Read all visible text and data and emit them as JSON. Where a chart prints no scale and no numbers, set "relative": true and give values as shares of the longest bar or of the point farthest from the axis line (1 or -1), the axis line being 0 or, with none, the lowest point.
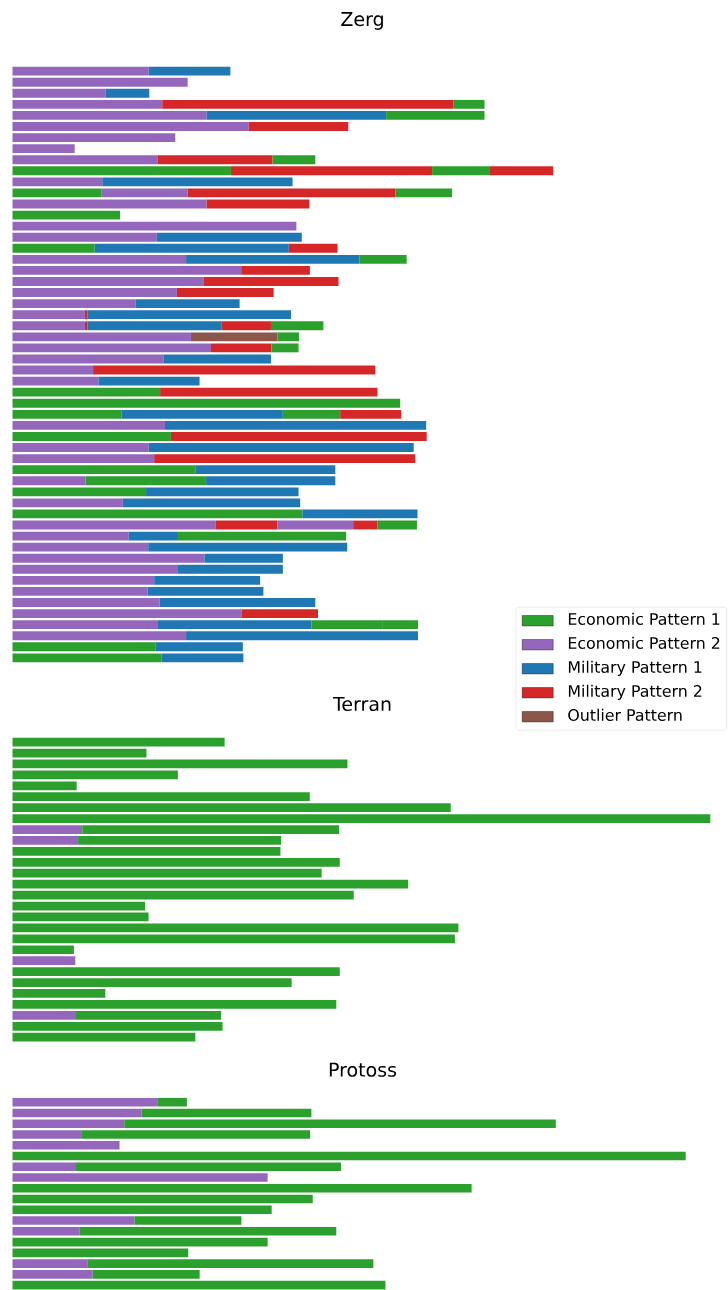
{
  "chart_data": [
    {
      "type": "bar",
      "title": "Zerg",
      "orientation": "horizontal",
      "stacked": true,
      "relative": true,
      "legend": "bottom right",
      "categories": [
        null,
        null,
        null,
        null,
        null,
        null,
        null,
        null,
        null,
        null,
        null,
        null,
        null,
        null,
        null,
        null,
        null,
        null,
        null,
        null,
        null,
        null,
        null,
        null,
        null,
        null,
        null,
        null,
        null,
        null,
        null,
        null,
        null,
        null,
        null,
        null,
        null,
        null,
        null,
        null,
        null,
        null,
        null,
        null,
        null,
        null,
        null,
        null,
        null,
        null,
        null,
        null,
        null,
        null
      ],
      "series": [
        {
          "name": "Economic Pattern 1",
          "color": "#2ca02c",
          "values": [
            null,
            null,
            null,
            null,
            null,
            null,
            null,
            null,
            null,
            0.404,
            null,
            0.164,
            null,
            0.199,
            null,
            null,
            0.152,
            null,
            null,
            null,
            null,
            null,
            null,
            null,
            null,
            null,
            null,
            null,
            null,
            0.273,
            0.717,
            0.202,
            null,
            0.293,
            null,
            null,
            0.339,
            null,
            0.247,
            null,
            0.536,
            null,
            null,
            null,
            null,
            null,
            null,
            null,
            null,
            null,
            null,
            null,
            0.265,
            0.276
          ]
        },
        {
          "name": "Economic Pattern 2",
          "color": "#9467bd",
          "values": [
            0.252,
            0.324,
            0.172,
            0.277,
            0.359,
            0.437,
            0.301,
            0.115,
            0.268,
            null,
            0.166,
            0.16,
            0.359,
            null,
            0.525,
            0.267,
            null,
            0.321,
            0.423,
            0.353,
            0.304,
            0.228,
            0.134,
            0.134,
            0.33,
            0.367,
            0.279,
            0.149,
            0.159,
            null,
            null,
            null,
            0.282,
            null,
            0.252,
            0.262,
            null,
            0.135,
            null,
            0.204,
            null,
            0.376,
            0.215,
            0.251,
            0.355,
            0.306,
            0.262,
            0.25,
            0.272,
            0.424,
            0.269,
            0.321,
            null,
            null
          ]
        },
        {
          "name": "Military Pattern 1",
          "color": "#1f77b4",
          "values": [
            0.151,
            null,
            0.081,
            null,
            0.332,
            null,
            null,
            null,
            null,
            null,
            0.352,
            null,
            null,
            null,
            null,
            0.268,
            0.359,
            0.321,
            null,
            null,
            null,
            0.192,
            null,
            null,
            null,
            null,
            0.199,
            null,
            0.187,
            null,
            null,
            0.298,
            0.483,
            null,
            0.49,
            null,
            0.258,
            null,
            0.282,
            0.328,
            0.213,
            null,
            0.091,
            0.368,
            0.145,
            0.194,
            0.196,
            0.214,
            0.288,
            null,
            0.284,
            0.429,
            0.161,
            0.151
          ]
        },
        {
          "name": "Military Pattern 2",
          "color": "#d62728",
          "values": [
            null,
            null,
            null,
            0.538,
            null,
            0.184,
            null,
            null,
            0.213,
            0.372,
            null,
            0.384,
            0.19,
            null,
            null,
            null,
            0.09,
            null,
            0.127,
            0.25,
            0.179,
            null,
            0.005,
            0.005,
            null,
            0.112,
            null,
            0.522,
            null,
            0.402,
            null,
            null,
            null,
            0.473,
            null,
            0.483,
            null,
            null,
            null,
            null,
            null,
            0.114,
            null,
            null,
            null,
            null,
            null,
            null,
            null,
            0.141,
            null,
            null,
            null,
            null
          ]
        },
        {
          "color": "#2ca02c",
          "values": [
            null,
            null,
            null,
            0.058,
            0.182,
            null,
            null,
            null,
            0.079,
            0.107,
            null,
            0.105,
            null,
            null,
            null,
            null,
            null,
            0.087,
            null,
            null,
            null,
            null,
            null,
            null,
            null,
            0.05,
            null,
            null,
            null,
            null,
            null,
            0.106,
            null,
            null,
            null,
            null,
            null,
            0.223,
            null,
            null,
            null,
            null,
            0.311,
            null,
            null,
            null,
            null,
            null,
            null,
            null,
            0.132,
            null,
            null,
            null
          ]
        },
        {
          "color": "#1f77b4",
          "values": [
            null,
            null,
            null,
            null,
            null,
            null,
            null,
            null,
            null,
            null,
            null,
            null,
            null,
            null,
            null,
            null,
            null,
            null,
            null,
            null,
            null,
            null,
            0.376,
            0.248,
            null,
            null,
            null,
            null,
            null,
            null,
            null,
            null,
            null,
            null,
            null,
            null,
            null,
            0.239,
            null,
            null,
            null,
            null,
            null,
            null,
            null,
            null,
            null,
            null,
            null,
            null,
            null,
            null,
            null,
            null
          ]
        },
        {
          "color": "#d62728",
          "values": [
            null,
            null,
            null,
            null,
            null,
            null,
            null,
            null,
            null,
            0.117,
            null,
            null,
            null,
            null,
            null,
            null,
            null,
            null,
            null,
            null,
            null,
            null,
            null,
            0.091,
            null,
            null,
            null,
            null,
            null,
            null,
            null,
            0.113,
            null,
            null,
            null,
            null,
            null,
            null,
            null,
            null,
            null,
            null,
            null,
            null,
            null,
            null,
            null,
            null,
            null,
            null,
            null,
            null,
            null,
            null
          ]
        },
        {
          "color": "#9467bd",
          "values": [
            null,
            null,
            null,
            null,
            null,
            null,
            null,
            null,
            null,
            null,
            null,
            null,
            null,
            null,
            null,
            null,
            null,
            null,
            null,
            null,
            null,
            null,
            null,
            null,
            null,
            null,
            null,
            null,
            null,
            null,
            null,
            null,
            null,
            null,
            null,
            null,
            null,
            null,
            null,
            null,
            null,
            0.14,
            null,
            null,
            null,
            null,
            null,
            null,
            null,
            null,
            null,
            null,
            null,
            null
          ]
        },
        {
          "color": "#d62728",
          "values": [
            null,
            null,
            null,
            null,
            null,
            null,
            null,
            null,
            null,
            null,
            null,
            null,
            null,
            null,
            null,
            null,
            null,
            null,
            null,
            null,
            null,
            null,
            null,
            null,
            null,
            null,
            null,
            null,
            null,
            null,
            null,
            null,
            null,
            null,
            null,
            null,
            null,
            null,
            null,
            null,
            null,
            0.045,
            null,
            null,
            null,
            null,
            null,
            null,
            null,
            null,
            null,
            null,
            null,
            null
          ]
        },
        {
          "name": "Outlier Pattern",
          "color": "#8c564b",
          "values": [
            null,
            null,
            null,
            null,
            null,
            null,
            null,
            null,
            null,
            null,
            null,
            null,
            null,
            null,
            null,
            null,
            null,
            null,
            null,
            null,
            null,
            null,
            null,
            null,
            0.16,
            null,
            null,
            null,
            null,
            null,
            null,
            null,
            null,
            null,
            null,
            null,
            null,
            null,
            null,
            null,
            null,
            null,
            null,
            null,
            null,
            null,
            null,
            null,
            null,
            null,
            null,
            null,
            null,
            null
          ]
        },
        {
          "color": "#2ca02c",
          "values": [
            null,
            null,
            null,
            null,
            null,
            null,
            null,
            null,
            null,
            null,
            null,
            null,
            null,
            null,
            null,
            null,
            null,
            null,
            null,
            null,
            null,
            null,
            null,
            0.097,
            0.04,
            null,
            null,
            null,
            null,
            null,
            null,
            null,
            null,
            null,
            null,
            null,
            null,
            null,
            null,
            null,
            null,
            0.073,
            null,
            null,
            null,
            null,
            null,
            null,
            null,
            null,
            0.065,
            null,
            null,
            null
          ]
        }
      ]
    },
    {
      "type": "bar",
      "title": "Terran",
      "orientation": "horizontal",
      "stacked": true,
      "relative": true,
      "categories": [
        null,
        null,
        null,
        null,
        null,
        null,
        null,
        null,
        null,
        null,
        null,
        null,
        null,
        null,
        null,
        null,
        null,
        null,
        null,
        null,
        null,
        null,
        null,
        null,
        null,
        null,
        null,
        null
      ],
      "series": [
        {
          "color": "#9467bd",
          "values": [
            null,
            null,
            null,
            null,
            null,
            null,
            null,
            null,
            0.1,
            0.094,
            null,
            null,
            null,
            null,
            null,
            null,
            null,
            null,
            null,
            null,
            0.09,
            null,
            null,
            null,
            null,
            0.091,
            null,
            null
          ]
        },
        {
          "color": "#2ca02c",
          "values": [
            0.304,
            0.192,
            0.48,
            0.237,
            0.092,
            0.426,
            0.628,
            1.0,
            0.368,
            0.291,
            0.384,
            0.469,
            0.443,
            0.567,
            0.489,
            0.19,
            0.195,
            0.639,
            0.634,
            0.088,
            null,
            0.469,
            0.4,
            0.133,
            0.464,
            0.208,
            0.301,
            0.262
          ]
        }
      ]
    },
    {
      "type": "bar",
      "title": "Protoss",
      "orientation": "horizontal",
      "stacked": true,
      "relative": true,
      "categories": [
        null,
        null,
        null,
        null,
        null,
        null,
        null,
        null,
        null,
        null,
        null,
        null,
        null,
        null,
        null,
        null,
        null,
        null
      ],
      "series": [
        {
          "color": "#9467bd",
          "values": [
            0.216,
            0.192,
            0.166,
            0.102,
            0.159,
            null,
            0.093,
            0.379,
            null,
            null,
            null,
            0.181,
            0.1,
            null,
            null,
            0.111,
            0.119,
            null
          ]
        },
        {
          "color": "#2ca02c",
          "values": [
            0.043,
            0.252,
            0.641,
            0.34,
            null,
            1.0,
            0.395,
            null,
            0.682,
            0.446,
            0.385,
            0.159,
            0.381,
            0.379,
            0.261,
            0.425,
            0.159,
            0.554
          ]
        }
      ]
    }
  ]
}
